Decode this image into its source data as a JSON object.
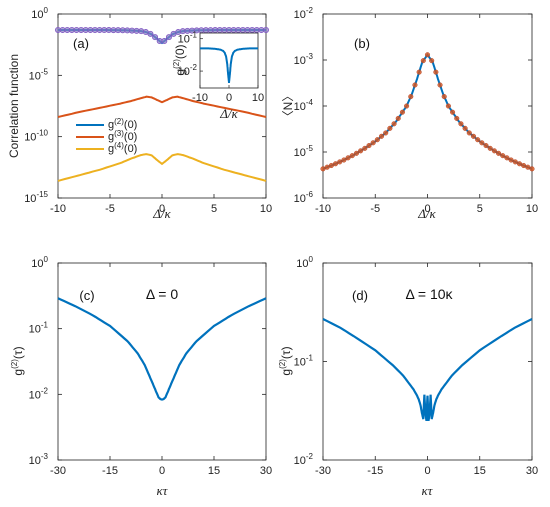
{
  "colors": {
    "blue": "#0072BD",
    "orange": "#D95319",
    "yellow": "#EDB120",
    "marker_face": "#8E7CC3",
    "marker_edge": "#7E57C2",
    "marker_red": "#D95319"
  },
  "chart_data": [
    {
      "id": "a",
      "type": "line",
      "panel_label": "(a)",
      "xlabel": "Δ/κ",
      "ylabel": "Correlation function",
      "y_scale": "log",
      "xlim": [
        -10,
        10
      ],
      "ylim": [
        1e-15,
        1
      ],
      "x_ticks": [
        -10,
        -5,
        0,
        5,
        10
      ],
      "y_ticks": [
        1,
        1e-05,
        1e-10,
        1e-15
      ],
      "y_tick_labels": [
        "10",
        "10",
        "10",
        "10"
      ],
      "y_tick_exps": [
        "0",
        "-5",
        "-10",
        "-15"
      ],
      "legend": {
        "position": "left",
        "entries": [
          {
            "label": "g",
            "sup": "(2)",
            "tail": "(0)",
            "color": "#0072BD"
          },
          {
            "label": "g",
            "sup": "(3)",
            "tail": "(0)",
            "color": "#D95319"
          },
          {
            "label": "g",
            "sup": "(4)",
            "tail": "(0)",
            "color": "#EDB120"
          }
        ]
      },
      "series": [
        {
          "key": "g2",
          "x": [
            -10,
            -8,
            -6,
            -4,
            -3,
            -2,
            -1.5,
            -1,
            -0.5,
            0,
            0.5,
            1,
            1.5,
            2,
            3,
            4,
            6,
            8,
            10
          ],
          "y": [
            0.05,
            0.05,
            0.05,
            0.048,
            0.045,
            0.04,
            0.033,
            0.022,
            0.01,
            0.0043,
            0.01,
            0.022,
            0.033,
            0.04,
            0.045,
            0.048,
            0.05,
            0.05,
            0.05
          ],
          "color": "#0072BD",
          "markers": true
        },
        {
          "key": "g3",
          "x": [
            -10,
            -8,
            -6,
            -4,
            -3,
            -2,
            -1.5,
            -1,
            -0.5,
            0,
            0.5,
            1,
            1.5,
            2,
            3,
            4,
            6,
            8,
            10
          ],
          "y": [
            4e-09,
            1e-08,
            2.2e-08,
            5e-08,
            8e-08,
            1.4e-07,
            1.8e-07,
            1.6e-07,
            1e-07,
            6.5e-08,
            1e-07,
            1.6e-07,
            1.8e-07,
            1.4e-07,
            8e-08,
            5e-08,
            2.2e-08,
            1e-08,
            4e-09
          ],
          "color": "#D95319"
        },
        {
          "key": "g4",
          "x": [
            -10,
            -8,
            -6,
            -4,
            -3,
            -2,
            -1.5,
            -1,
            -0.5,
            0,
            0.5,
            1,
            1.5,
            2,
            3,
            4,
            6,
            8,
            10
          ],
          "y": [
            2.5e-14,
            7e-14,
            2e-13,
            7e-13,
            1.6e-12,
            3.2e-12,
            3.8e-12,
            3e-12,
            1.3e-12,
            6e-13,
            1.3e-12,
            3e-12,
            3.8e-12,
            3.2e-12,
            1.6e-12,
            7e-13,
            2e-13,
            7e-14,
            2.5e-14
          ],
          "color": "#EDB120"
        }
      ],
      "inset": {
        "ylabel": "g(2)(0)",
        "ylabel_main": "g",
        "ylabel_sup": "(2)",
        "ylabel_tail": "(0)",
        "xlabel": "Δ/κ",
        "y_scale": "log",
        "xlim": [
          -10,
          10
        ],
        "ylim": [
          0.003,
          0.15
        ],
        "x_ticks": [
          -10,
          0,
          10
        ],
        "y_ticks": [
          0.1,
          0.01
        ],
        "y_tick_exps": [
          "-1",
          "-2"
        ],
        "series": {
          "x": [
            -10,
            -7,
            -5,
            -3,
            -2,
            -1.5,
            -1,
            -0.6,
            -0.3,
            0,
            0.3,
            0.6,
            1,
            1.5,
            2,
            3,
            5,
            7,
            10
          ],
          "y": [
            0.05,
            0.05,
            0.049,
            0.046,
            0.042,
            0.037,
            0.028,
            0.016,
            0.008,
            0.0043,
            0.008,
            0.016,
            0.028,
            0.037,
            0.042,
            0.046,
            0.049,
            0.05,
            0.05
          ],
          "color": "#0072BD"
        }
      }
    },
    {
      "id": "b",
      "type": "line",
      "panel_label": "(b)",
      "xlabel": "Δ/κ",
      "ylabel": "〈N〉",
      "y_scale": "log",
      "xlim": [
        -10,
        10
      ],
      "ylim": [
        1e-06,
        0.01
      ],
      "x_ticks": [
        -10,
        -5,
        0,
        5,
        10
      ],
      "y_ticks": [
        0.01,
        0.001,
        0.0001,
        1e-05,
        1e-06
      ],
      "y_tick_exps": [
        "-2",
        "-3",
        "-4",
        "-5",
        "-6"
      ],
      "series": [
        {
          "key": "N",
          "x": [
            -10,
            -9,
            -8,
            -7,
            -6,
            -5,
            -4,
            -3,
            -2,
            -1.5,
            -1,
            -0.5,
            0,
            0.5,
            1,
            1.5,
            2,
            3,
            4,
            5,
            6,
            7,
            8,
            9,
            10
          ],
          "y": [
            4.3e-06,
            5.3e-06,
            6.7e-06,
            8.8e-06,
            1.2e-05,
            1.7e-05,
            2.6e-05,
            4.6e-05,
            0.0001,
            0.00018,
            0.00039,
            0.0009,
            0.0013,
            0.0009,
            0.00039,
            0.00018,
            0.0001,
            4.6e-05,
            2.6e-05,
            1.7e-05,
            1.2e-05,
            8.8e-06,
            6.7e-06,
            5.3e-06,
            4.3e-06
          ],
          "color": "#0072BD",
          "markers": true
        }
      ]
    },
    {
      "id": "c",
      "type": "line",
      "panel_label": "(c)",
      "annotation": "Δ = 0",
      "xlabel": "κτ",
      "ylabel": "g(2)(τ)",
      "ylabel_main": "g",
      "ylabel_sup": "(2)",
      "ylabel_tail": "(τ)",
      "y_scale": "log",
      "xlim": [
        -30,
        30
      ],
      "ylim": [
        0.001,
        1
      ],
      "x_ticks": [
        -30,
        -15,
        0,
        15,
        30
      ],
      "y_ticks": [
        1,
        0.1,
        0.01,
        0.001
      ],
      "y_tick_exps": [
        "0",
        "-1",
        "-2",
        "-3"
      ],
      "series": [
        {
          "key": "g2tau",
          "x": [
            -30,
            -25,
            -20,
            -15,
            -10,
            -7,
            -5,
            -3,
            -2,
            -1,
            -0.5,
            0,
            0.5,
            1,
            2,
            3,
            5,
            7,
            10,
            15,
            20,
            25,
            30
          ],
          "y": [
            0.29,
            0.22,
            0.16,
            0.11,
            0.065,
            0.042,
            0.028,
            0.016,
            0.012,
            0.009,
            0.0085,
            0.0083,
            0.0085,
            0.009,
            0.012,
            0.016,
            0.028,
            0.042,
            0.065,
            0.11,
            0.16,
            0.22,
            0.29
          ],
          "color": "#0072BD"
        }
      ]
    },
    {
      "id": "d",
      "type": "line",
      "panel_label": "(d)",
      "annotation": "Δ = 10κ",
      "xlabel": "κτ",
      "ylabel": "g(2)(τ)",
      "ylabel_main": "g",
      "ylabel_sup": "(2)",
      "ylabel_tail": "(τ)",
      "y_scale": "log",
      "xlim": [
        -30,
        30
      ],
      "ylim": [
        0.01,
        1
      ],
      "x_ticks": [
        -30,
        -15,
        0,
        15,
        30
      ],
      "y_ticks": [
        1,
        0.1,
        0.01
      ],
      "y_tick_exps": [
        "0",
        "-1",
        "-2"
      ],
      "series": [
        {
          "key": "g2tau",
          "x": [
            -30,
            -25,
            -20,
            -15,
            -10,
            -7,
            -5,
            -4,
            -3,
            -2.5,
            -2,
            -1.6,
            -1.2,
            -0.9,
            -0.6,
            -0.3,
            0,
            0.3,
            0.6,
            0.9,
            1.2,
            1.6,
            2,
            2.5,
            3,
            4,
            5,
            7,
            10,
            15,
            20,
            25,
            30
          ],
          "y": [
            0.27,
            0.22,
            0.17,
            0.13,
            0.092,
            0.072,
            0.058,
            0.052,
            0.045,
            0.041,
            0.036,
            0.03,
            0.026,
            0.046,
            0.03,
            0.025,
            0.045,
            0.025,
            0.03,
            0.046,
            0.026,
            0.03,
            0.036,
            0.041,
            0.045,
            0.052,
            0.058,
            0.072,
            0.092,
            0.13,
            0.17,
            0.22,
            0.27
          ],
          "color": "#0072BD"
        }
      ]
    }
  ]
}
